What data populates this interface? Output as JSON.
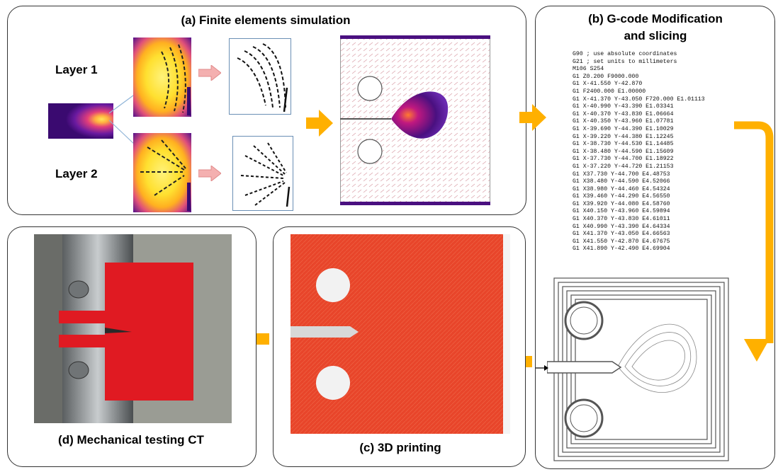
{
  "panels": {
    "a": {
      "title": "(a) Finite elements simulation",
      "layer1": "Layer 1",
      "layer2": "Layer 2"
    },
    "b": {
      "title_line1": "(b) G-code Modification",
      "title_line2": "and slicing"
    },
    "c": {
      "title": "(c) 3D printing"
    },
    "d": {
      "title": "(d) Mechanical testing CT"
    }
  },
  "gcode": [
    "G90 ; use absolute coordinates",
    "G21 ; set units to millimeters",
    "M106 S254",
    "G1 Z0.200 F9000.000",
    "G1 X-41.550 Y-42.870",
    "G1 F2400.000 E1.00000",
    "G1 X-41.370 Y-43.050 F720.000 E1.01113",
    "G1 X-40.990 Y-43.390 E1.03341",
    "G1 X-40.370 Y-43.830 E1.06664",
    "G1 X-40.350 Y-43.960 E1.07781",
    "G1 X-39.690 Y-44.390 E1.10029",
    "G1 X-39.220 Y-44.380 E1.12245",
    "G1 X-38.730 Y-44.530 E1.14485",
    "G1 X-38.480 Y-44.590 E1.15609",
    "G1 X-37.730 Y-44.700 E1.18922",
    "G1 X-37.220 Y-44.720 E1.21153",
    "G1 X37.730 Y-44.700 E4.48753",
    "G1 X38.480 Y-44.590 E4.52066",
    "G1 X38.980 Y-44.460 E4.54324",
    "G1 X39.460 Y-44.290 E4.56550",
    "G1 X39.920 Y-44.080 E4.58760",
    "G1 X40.150 Y-43.960 E4.59894",
    "G1 X40.370 Y-43.830 E4.61011",
    "G1 X40.990 Y-43.390 E4.64334",
    "G1 X41.370 Y-43.050 E4.66563",
    "G1 X41.550 Y-42.870 E4.67675",
    "G1 X41.890 Y-42.490 E4.69904"
  ],
  "colors": {
    "arrow": "#FFB000",
    "pink_arrow": "#F4B0B0",
    "print_red": "#E8452A",
    "heat_yellow": "#FFE030",
    "heat_purple": "#4A1080"
  }
}
